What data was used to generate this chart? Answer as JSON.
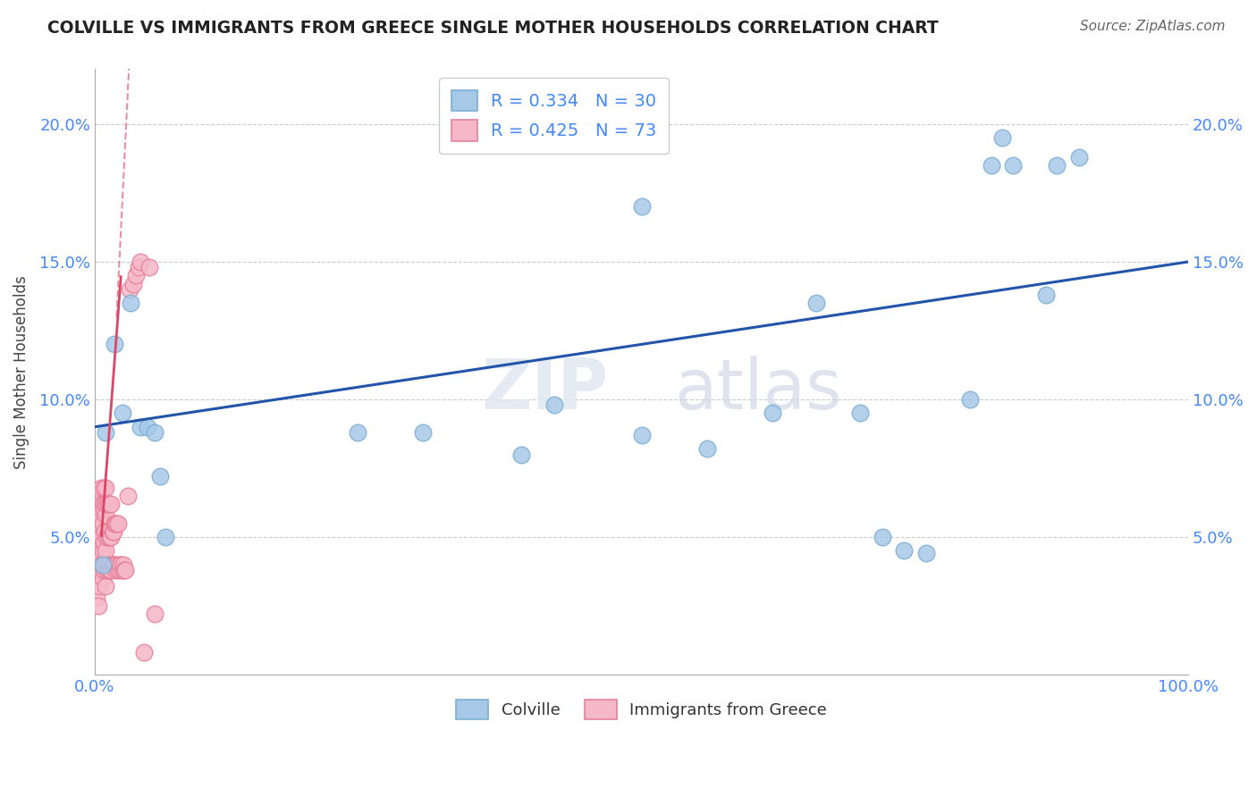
{
  "title": "COLVILLE VS IMMIGRANTS FROM GREECE SINGLE MOTHER HOUSEHOLDS CORRELATION CHART",
  "source": "Source: ZipAtlas.com",
  "ylabel": "Single Mother Households",
  "colville_R": 0.334,
  "colville_N": 30,
  "greece_R": 0.425,
  "greece_N": 73,
  "colville_color_fill": "#a8c8e8",
  "colville_color_edge": "#7aafd4",
  "greece_color_fill": "#f5b8c8",
  "greece_color_edge": "#e8809a",
  "trendline_blue": "#2255aa",
  "trendline_pink": "#dd4466",
  "legend_text_color": "#4488ff",
  "title_color": "#222222",
  "colville_x": [
    0.007,
    0.01,
    0.018,
    0.025,
    0.033,
    0.042,
    0.048,
    0.055,
    0.06,
    0.065,
    0.24,
    0.3,
    0.39,
    0.42,
    0.5,
    0.56,
    0.5,
    0.62,
    0.66,
    0.7,
    0.72,
    0.74,
    0.76,
    0.8,
    0.82,
    0.83,
    0.84,
    0.87,
    0.88,
    0.9
  ],
  "colville_y": [
    0.04,
    0.088,
    0.12,
    0.095,
    0.135,
    0.09,
    0.09,
    0.088,
    0.072,
    0.05,
    0.088,
    0.088,
    0.08,
    0.098,
    0.087,
    0.082,
    0.17,
    0.095,
    0.135,
    0.095,
    0.05,
    0.045,
    0.044,
    0.1,
    0.185,
    0.195,
    0.185,
    0.138,
    0.185,
    0.188
  ],
  "greece_x": [
    0.001,
    0.002,
    0.002,
    0.003,
    0.003,
    0.003,
    0.004,
    0.004,
    0.004,
    0.005,
    0.005,
    0.005,
    0.006,
    0.006,
    0.006,
    0.006,
    0.007,
    0.007,
    0.007,
    0.007,
    0.008,
    0.008,
    0.008,
    0.008,
    0.009,
    0.009,
    0.009,
    0.01,
    0.01,
    0.01,
    0.01,
    0.011,
    0.011,
    0.011,
    0.012,
    0.012,
    0.012,
    0.013,
    0.013,
    0.013,
    0.014,
    0.014,
    0.015,
    0.015,
    0.015,
    0.016,
    0.016,
    0.017,
    0.017,
    0.018,
    0.018,
    0.019,
    0.019,
    0.02,
    0.02,
    0.021,
    0.021,
    0.022,
    0.023,
    0.024,
    0.025,
    0.026,
    0.027,
    0.028,
    0.03,
    0.032,
    0.035,
    0.038,
    0.04,
    0.042,
    0.045,
    0.05,
    0.055
  ],
  "greece_y": [
    0.04,
    0.028,
    0.042,
    0.025,
    0.038,
    0.05,
    0.032,
    0.048,
    0.058,
    0.038,
    0.052,
    0.062,
    0.04,
    0.05,
    0.06,
    0.068,
    0.035,
    0.045,
    0.055,
    0.062,
    0.038,
    0.048,
    0.06,
    0.068,
    0.04,
    0.052,
    0.062,
    0.032,
    0.045,
    0.058,
    0.068,
    0.038,
    0.05,
    0.062,
    0.038,
    0.05,
    0.062,
    0.04,
    0.052,
    0.062,
    0.038,
    0.05,
    0.038,
    0.05,
    0.062,
    0.04,
    0.052,
    0.04,
    0.052,
    0.04,
    0.055,
    0.038,
    0.055,
    0.04,
    0.055,
    0.038,
    0.055,
    0.04,
    0.038,
    0.04,
    0.038,
    0.04,
    0.038,
    0.038,
    0.065,
    0.14,
    0.142,
    0.145,
    0.148,
    0.15,
    0.008,
    0.148,
    0.022
  ],
  "xlim": [
    0.0,
    1.0
  ],
  "ylim": [
    0.0,
    0.22
  ],
  "xticks": [
    0.0,
    0.2,
    0.4,
    0.6,
    0.8,
    1.0
  ],
  "xticklabels": [
    "0.0%",
    "",
    "",
    "",
    "",
    "100.0%"
  ],
  "yticks": [
    0.05,
    0.1,
    0.15,
    0.2
  ],
  "yticklabels": [
    "5.0%",
    "10.0%",
    "15.0%",
    "20.0%"
  ],
  "grid_color": "#cccccc",
  "watermark_zip": "ZIP",
  "watermark_atlas": "atlas",
  "background_color": "#ffffff"
}
